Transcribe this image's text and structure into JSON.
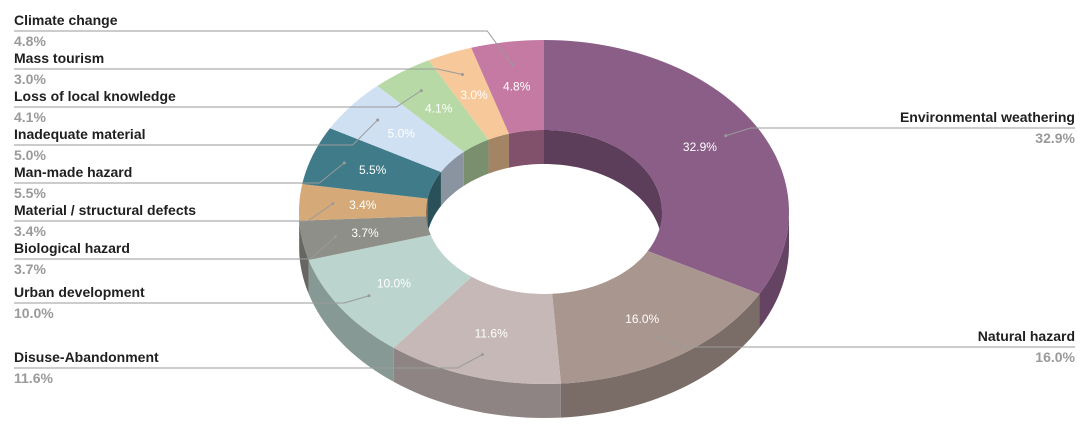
{
  "chart_data": {
    "type": "pie",
    "variant": "3d-donut",
    "title": "",
    "legend": "none",
    "slices": [
      {
        "label": "Environmental weathering",
        "value": 32.9,
        "display": "32.9%",
        "color": "#8b5e88"
      },
      {
        "label": "Natural hazard",
        "value": 16.0,
        "display": "16.0%",
        "color": "#a9968f"
      },
      {
        "label": "Disuse-Abandonment",
        "value": 11.6,
        "display": "11.6%",
        "color": "#c5b8b7"
      },
      {
        "label": "Urban development",
        "value": 10.0,
        "display": "10.0%",
        "color": "#bbd4cd"
      },
      {
        "label": "Biological hazard",
        "value": 3.7,
        "display": "3.7%",
        "color": "#8e8f88"
      },
      {
        "label": "Material / structural defects",
        "value": 3.4,
        "display": "3.4%",
        "color": "#d6aa78"
      },
      {
        "label": "Man-made hazard",
        "value": 5.5,
        "display": "5.5%",
        "color": "#3f7b88"
      },
      {
        "label": "Inadequate material",
        "value": 5.0,
        "display": "5.0%",
        "color": "#cfe0f2"
      },
      {
        "label": "Loss of local knowledge",
        "value": 4.1,
        "display": "4.1%",
        "color": "#b7d9a6"
      },
      {
        "label": "Mass tourism",
        "value": 3.0,
        "display": "3.0%",
        "color": "#f7c99a"
      },
      {
        "label": "Climate change",
        "value": 4.8,
        "display": "4.8%",
        "color": "#c47aa3"
      }
    ]
  }
}
